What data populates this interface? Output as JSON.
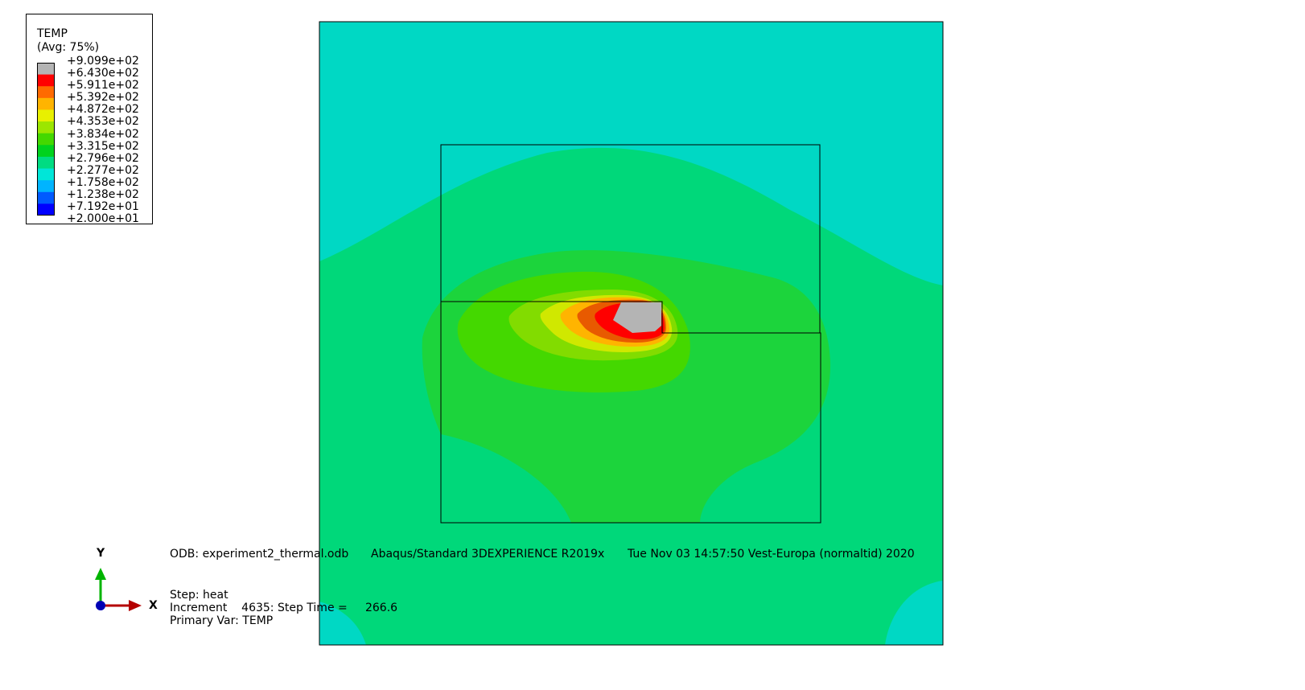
{
  "legend": {
    "title": "TEMP",
    "subtitle": "(Avg: 75%)",
    "labels": [
      "+9.099e+02",
      "+6.430e+02",
      "+5.911e+02",
      "+5.392e+02",
      "+4.872e+02",
      "+4.353e+02",
      "+3.834e+02",
      "+3.315e+02",
      "+2.796e+02",
      "+2.277e+02",
      "+1.758e+02",
      "+1.238e+02",
      "+7.192e+01",
      "+2.000e+01"
    ],
    "colors": [
      "#b4b4b4",
      "#ff0000",
      "#ff6a00",
      "#ffb400",
      "#e8f000",
      "#9ce600",
      "#44d800",
      "#00d21e",
      "#00dc82",
      "#00e6d8",
      "#00b4ff",
      "#005aff",
      "#0000ff"
    ]
  },
  "contour": {
    "background": "#00d8c4",
    "bands": {
      "b2277": "#00d87a",
      "b2796": "#1cd43c",
      "b3315": "#44d800",
      "b3834": "#82dc00",
      "b4353": "#d0e800",
      "b4872": "#ffb400",
      "b5392": "#e85a00",
      "b5911": "#ff0000",
      "b6430": "#b4b4b4"
    }
  },
  "info": {
    "odb": "ODB: experiment2_thermal.odb",
    "solver": "Abaqus/Standard 3DEXPERIENCE R2019x",
    "date": "Tue Nov 03 14:57:50 Vest-Europa (normaltid) 2020",
    "step": "Step: heat",
    "increment": "Increment    4635: Step Time =     266.6",
    "primary_var": "Primary Var: TEMP"
  },
  "triad": {
    "y_label": "Y",
    "x_label": "X",
    "y_color": "#00b400",
    "x_color": "#b40000",
    "z_color": "#0000b4"
  }
}
